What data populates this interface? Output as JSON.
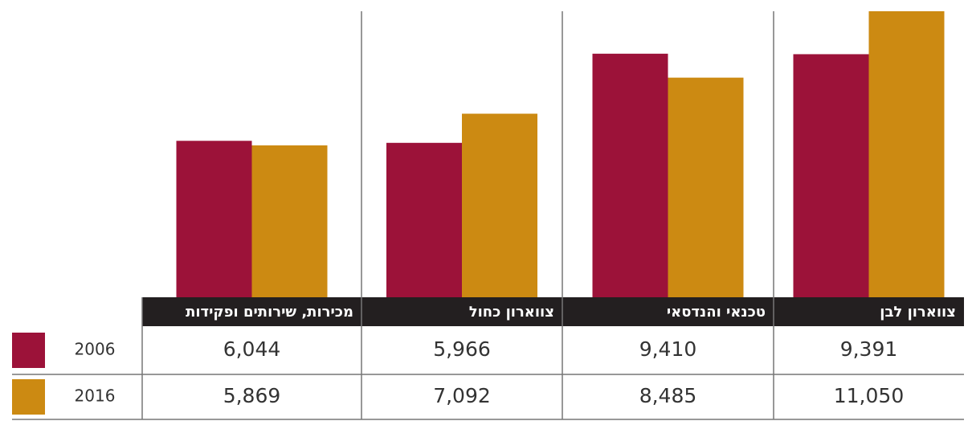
{
  "chart_data": {
    "type": "bar",
    "categories": [
      "צווארון לבן",
      "טכנאי והנדסאי",
      "צווארון כחול",
      "מכירות, שירותים ופקידות"
    ],
    "series": [
      {
        "name": "2006",
        "color": "#9c1239",
        "values": [
          9391,
          9410,
          5966,
          6044
        ],
        "value_labels": [
          "9,391",
          "9,410",
          "5,966",
          "6,044"
        ]
      },
      {
        "name": "2016",
        "color": "#cc8a12",
        "values": [
          11050,
          8485,
          7092,
          5869
        ],
        "value_labels": [
          "11,050",
          "8,485",
          "7,092",
          "5,869"
        ]
      }
    ]
  }
}
